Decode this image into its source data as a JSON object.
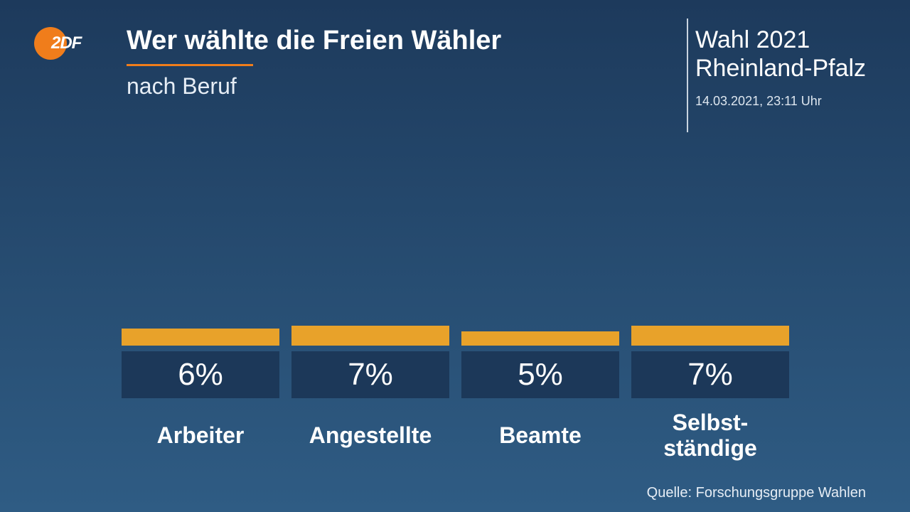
{
  "logo": {
    "text": "2DF",
    "color": "#f07d1b"
  },
  "header": {
    "title": "Wer wählte die Freien Wähler",
    "subtitle": "nach Beruf",
    "accent_color": "#f07d1b"
  },
  "election": {
    "line1": "Wahl 2021",
    "line2": "Rheinland-Pfalz",
    "timestamp": "14.03.2021, 23:11 Uhr"
  },
  "chart_data": {
    "type": "bar",
    "title": "Wer wählte die Freien Wähler",
    "subtitle": "nach Beruf",
    "categories": [
      "Arbeiter",
      "Angestellte",
      "Beamte",
      "Selbst-\nständige"
    ],
    "values": [
      6,
      7,
      5,
      7
    ],
    "value_labels": [
      "6%",
      "7%",
      "5%",
      "7%"
    ],
    "unit": "%",
    "bar_color": "#e8a22a",
    "box_color": "#1c3859",
    "xlabel": "",
    "ylabel": "",
    "ylim": [
      0,
      100
    ]
  },
  "source": "Quelle: Forschungsgruppe Wahlen"
}
